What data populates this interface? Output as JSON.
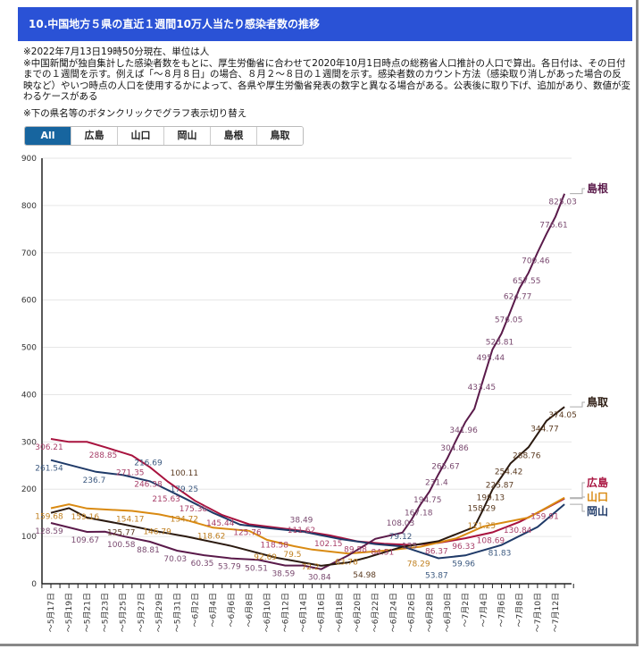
{
  "header": {
    "title": "10.中国地方５県の直近１週間10万人当たり感染者数の推移"
  },
  "notes": [
    "※2022年7月13日19時50分現在、単位は人",
    "※中国新聞が独自集計した感染者数をもとに、厚生労働省に合わせて2020年10月1日時点の総務省人口推計の人口で算出。各日付は、その日付までの１週間を示す。例えば「～８月８日」の場合、８月２～８日の１週間を示す。感染者数のカウント方法（感染取り消しがあった場合の反映など）やいつ時点の人口を使用するかによって、各県や厚生労働省発表の数字と異なる場合がある。公表後に取り下げ、追加があり、数値が変わるケースがある",
    "※下の県名等のボタンクリックでグラフ表示切り替え"
  ],
  "buttons": [
    "All",
    "広島",
    "山口",
    "岡山",
    "島根",
    "鳥取"
  ],
  "selected_button": "All",
  "chart_data": {
    "type": "line",
    "ylim": [
      0,
      900
    ],
    "yticks": [
      0,
      100,
      200,
      300,
      400,
      500,
      600,
      700,
      800,
      900
    ],
    "grid": true,
    "x_start": "5/17",
    "x_end": "7/13",
    "xtick_labels": [
      "～5月17日",
      "～5月19日",
      "～5月21日",
      "～5月23日",
      "～5月25日",
      "～5月27日",
      "～5月29日",
      "～5月31日",
      "～6月2日",
      "～6月4日",
      "～6月6日",
      "～6月8日",
      "～6月10日",
      "～6月12日",
      "～6月14日",
      "～6月16日",
      "～6月18日",
      "～6月20日",
      "～6月22日",
      "～6月24日",
      "～6月26日",
      "～6月28日",
      "～6月30日",
      "～7月2日",
      "～7月4日",
      "～7月6日",
      "～7月8日",
      "～7月10日",
      "～7月12日"
    ],
    "legend_placement": "right-end-labels",
    "series": [
      {
        "name": "広島",
        "color": "#a8123e",
        "label_color": "#a8406a",
        "points": [
          [
            "5/17",
            306.21,
            1
          ],
          [
            "5/19",
            300,
            0
          ],
          [
            "5/21",
            300,
            0
          ],
          [
            "5/23",
            288.85,
            1
          ],
          [
            "5/26",
            271.35,
            1
          ],
          [
            "5/28",
            246.38,
            1
          ],
          [
            "5/30",
            215.63,
            1
          ],
          [
            "6/2",
            175.38,
            1
          ],
          [
            "6/5",
            145.44,
            1
          ],
          [
            "6/8",
            125.76,
            1
          ],
          [
            "6/11",
            118.58,
            1
          ],
          [
            "6/14",
            111.62,
            1
          ],
          [
            "6/17",
            102.15,
            1
          ],
          [
            "6/20",
            89.58,
            1
          ],
          [
            "6/23",
            84.51,
            1
          ],
          [
            "6/26",
            82,
            0
          ],
          [
            "6/29",
            86.37,
            1
          ],
          [
            "7/2",
            96.33,
            1
          ],
          [
            "7/5",
            108.69,
            1
          ],
          [
            "7/8",
            130.84,
            1
          ],
          [
            "7/11",
            159.91,
            1
          ],
          [
            "7/13",
            180,
            0
          ]
        ]
      },
      {
        "name": "山口",
        "color": "#d98a12",
        "label_color": "#c08020",
        "points": [
          [
            "5/17",
            159.68,
            1
          ],
          [
            "5/19",
            168,
            0
          ],
          [
            "5/21",
            159.16,
            1
          ],
          [
            "5/26",
            154.17,
            1
          ],
          [
            "5/29",
            146.79,
            1
          ],
          [
            "6/1",
            134.72,
            1
          ],
          [
            "6/4",
            118.62,
            1
          ],
          [
            "6/8",
            112,
            0
          ],
          [
            "6/10",
            92.69,
            1
          ],
          [
            "6/13",
            79.5,
            1
          ],
          [
            "6/15",
            72.2,
            1
          ],
          [
            "6/19",
            63.78,
            1
          ],
          [
            "6/23",
            70,
            0
          ],
          [
            "6/27",
            78.29,
            1
          ],
          [
            "7/1",
            96,
            0
          ],
          [
            "7/4",
            121.25,
            1
          ],
          [
            "7/9",
            140,
            0
          ],
          [
            "7/13",
            182,
            0
          ]
        ]
      },
      {
        "name": "岡山",
        "color": "#1f3a68",
        "label_color": "#3d5a80",
        "points": [
          [
            "5/17",
            261.54,
            1
          ],
          [
            "5/22",
            236.7,
            1
          ],
          [
            "5/25",
            230,
            0
          ],
          [
            "5/28",
            216.69,
            1
          ],
          [
            "6/1",
            179.25,
            1
          ],
          [
            "6/4",
            150,
            0
          ],
          [
            "6/7",
            125,
            0
          ],
          [
            "6/10",
            118,
            0
          ],
          [
            "6/14",
            110,
            0
          ],
          [
            "6/18",
            95,
            0
          ],
          [
            "6/22",
            84,
            0
          ],
          [
            "6/25",
            79.12,
            1
          ],
          [
            "6/29",
            53.87,
            1
          ],
          [
            "7/2",
            59.96,
            1
          ],
          [
            "7/6",
            81.83,
            1
          ],
          [
            "7/10",
            120,
            0
          ],
          [
            "7/13",
            168,
            0
          ]
        ]
      },
      {
        "name": "島根",
        "color": "#5a1a4a",
        "label_color": "#7a4a70",
        "points": [
          [
            "5/17",
            128.59,
            1
          ],
          [
            "5/21",
            109.67,
            1
          ],
          [
            "5/23",
            110,
            0
          ],
          [
            "5/25",
            100.58,
            1
          ],
          [
            "5/28",
            88.81,
            1
          ],
          [
            "5/31",
            70.03,
            1
          ],
          [
            "6/3",
            60.35,
            1
          ],
          [
            "6/6",
            53.79,
            1
          ],
          [
            "6/9",
            50.51,
            1
          ],
          [
            "6/12",
            38.59,
            1
          ],
          [
            "6/14",
            38.49,
            1
          ],
          [
            "6/16",
            30.84,
            1
          ],
          [
            "6/19",
            60,
            0
          ],
          [
            "6/22",
            95,
            0
          ],
          [
            "6/25",
            108.03,
            1
          ],
          [
            "6/26",
            135,
            1
          ],
          [
            "6/27",
            167.18,
            1
          ],
          [
            "6/28",
            194.75,
            1
          ],
          [
            "6/29",
            231.4,
            1
          ],
          [
            "6/30",
            265.67,
            1
          ],
          [
            "7/1",
            304.86,
            1
          ],
          [
            "7/2",
            341.96,
            1
          ],
          [
            "7/3",
            370,
            0
          ],
          [
            "7/4",
            433.45,
            1
          ],
          [
            "7/5",
            495.44,
            1
          ],
          [
            "7/6",
            528.81,
            1
          ],
          [
            "7/7",
            576.05,
            1
          ],
          [
            "7/8",
            624.77,
            1
          ],
          [
            "7/9",
            657.55,
            1
          ],
          [
            "7/10",
            700.46,
            1
          ],
          [
            "7/11",
            740,
            0
          ],
          [
            "7/12",
            776.61,
            1
          ],
          [
            "7/13",
            825.03,
            1
          ]
        ]
      },
      {
        "name": "鳥取",
        "color": "#2b1a10",
        "label_color": "#5a3a20",
        "points": [
          [
            "5/17",
            150,
            0
          ],
          [
            "5/19",
            160,
            0
          ],
          [
            "5/21",
            140,
            0
          ],
          [
            "5/25",
            125.77,
            1
          ],
          [
            "5/29",
            110,
            0
          ],
          [
            "6/1",
            100.11,
            1
          ],
          [
            "6/6",
            80,
            0
          ],
          [
            "6/11",
            55,
            0
          ],
          [
            "6/16",
            38,
            0
          ],
          [
            "6/19",
            45,
            0
          ],
          [
            "6/21",
            54.98,
            1
          ],
          [
            "6/25",
            78,
            0
          ],
          [
            "6/29",
            90,
            0
          ],
          [
            "7/3",
            120,
            0
          ],
          [
            "7/4",
            158.29,
            1
          ],
          [
            "7/5",
            199.13,
            1
          ],
          [
            "7/6",
            225.87,
            1
          ],
          [
            "7/7",
            254.42,
            1
          ],
          [
            "7/9",
            288.76,
            1
          ],
          [
            "7/11",
            344.77,
            1
          ],
          [
            "7/13",
            374.05,
            1
          ]
        ]
      }
    ]
  }
}
